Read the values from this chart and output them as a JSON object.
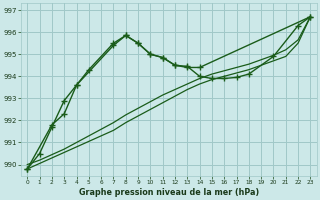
{
  "bg_color": "#cce8e8",
  "grid_color": "#a0c8c8",
  "line_color": "#1a5c1a",
  "title": "Graphe pression niveau de la mer (hPa)",
  "xlim": [
    -0.5,
    23.5
  ],
  "ylim": [
    989.5,
    997.3
  ],
  "yticks": [
    990,
    991,
    992,
    993,
    994,
    995,
    996,
    997
  ],
  "xticks": [
    0,
    1,
    2,
    3,
    4,
    5,
    6,
    7,
    8,
    9,
    10,
    11,
    12,
    13,
    14,
    15,
    16,
    17,
    18,
    19,
    20,
    21,
    22,
    23
  ],
  "series": [
    {
      "x": [
        0,
        1,
        2,
        3,
        4,
        5,
        7,
        8,
        9,
        10,
        11,
        12,
        13,
        14,
        23
      ],
      "y": [
        989.8,
        990.5,
        991.7,
        992.9,
        993.6,
        994.3,
        995.5,
        995.85,
        995.5,
        995.0,
        994.85,
        994.5,
        994.4,
        994.4,
        996.7
      ]
    },
    {
      "x": [
        0,
        1,
        2,
        3,
        4,
        5,
        6,
        7,
        8,
        9,
        10,
        11,
        12,
        13,
        14,
        15,
        16,
        17,
        18,
        19,
        20,
        21,
        22,
        23
      ],
      "y": [
        989.8,
        990.05,
        990.3,
        990.55,
        990.8,
        991.05,
        991.3,
        991.55,
        991.9,
        992.2,
        992.5,
        992.8,
        993.1,
        993.4,
        993.65,
        993.85,
        994.0,
        994.15,
        994.3,
        994.5,
        994.7,
        994.9,
        995.5,
        996.7
      ]
    },
    {
      "x": [
        0,
        1,
        2,
        3,
        4,
        5,
        6,
        7,
        8,
        9,
        10,
        11,
        12,
        13,
        14,
        15,
        16,
        17,
        18,
        19,
        20,
        21,
        22,
        23
      ],
      "y": [
        990.0,
        990.2,
        990.45,
        990.7,
        991.0,
        991.3,
        991.6,
        991.9,
        992.25,
        992.55,
        992.85,
        993.15,
        993.4,
        993.65,
        993.9,
        994.1,
        994.25,
        994.4,
        994.55,
        994.75,
        994.95,
        995.2,
        995.65,
        996.7
      ]
    },
    {
      "x": [
        0,
        2,
        3,
        4,
        7,
        8,
        9,
        10,
        11,
        12,
        13,
        14,
        15,
        16,
        17,
        18,
        20,
        22,
        23
      ],
      "y": [
        989.8,
        991.8,
        992.3,
        993.6,
        995.4,
        995.85,
        995.5,
        995.0,
        994.85,
        994.5,
        994.45,
        994.0,
        993.9,
        993.9,
        993.95,
        994.1,
        994.9,
        996.3,
        996.7
      ]
    }
  ]
}
